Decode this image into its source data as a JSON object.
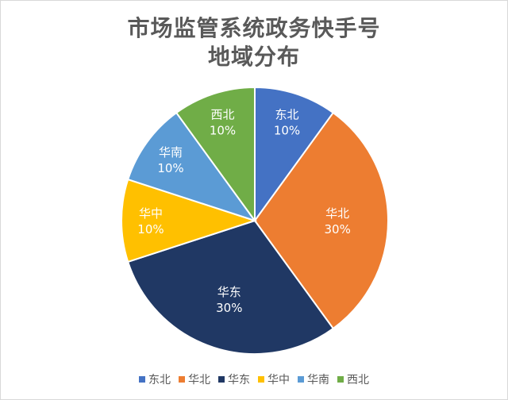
{
  "chart_data": {
    "type": "pie",
    "title": "市场监管系统政务快手号\n地域分布",
    "title_lines": [
      "市场监管系统政务快手号",
      "地域分布"
    ],
    "categories": [
      "东北",
      "华北",
      "华东",
      "华中",
      "华南",
      "西北"
    ],
    "values": [
      10,
      30,
      30,
      10,
      10,
      10
    ],
    "value_labels": [
      "10%",
      "30%",
      "30%",
      "10%",
      "10%",
      "10%"
    ],
    "colors": [
      "#4472c4",
      "#ed7d31",
      "#203864",
      "#ffc000",
      "#5b9bd5",
      "#70ad47"
    ],
    "legend": "bottom"
  }
}
